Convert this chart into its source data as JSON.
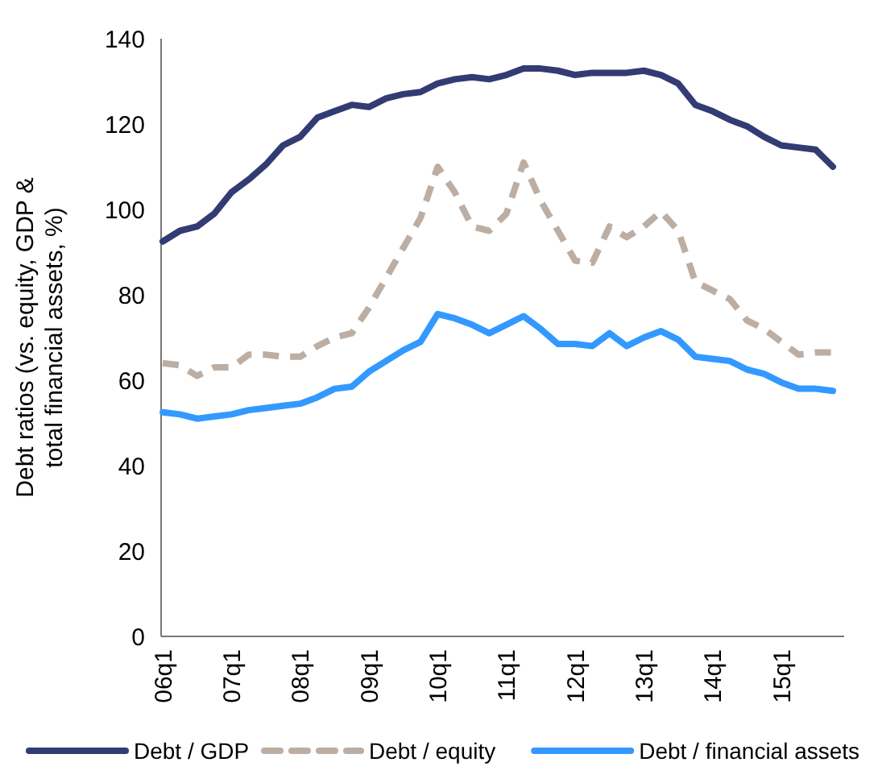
{
  "chart_data": {
    "type": "line",
    "ylabel": "Debt ratios (vs. equity, GDP & total financial assets, %)",
    "categories": [
      "06q1",
      null,
      null,
      null,
      "07q1",
      null,
      null,
      null,
      "08q1",
      null,
      null,
      null,
      "09q1",
      null,
      null,
      null,
      "10q1",
      null,
      null,
      null,
      "11q1",
      null,
      null,
      null,
      "12q1",
      null,
      null,
      null,
      "13q1",
      null,
      null,
      null,
      "14q1",
      null,
      null,
      null,
      "15q1",
      null,
      null,
      null
    ],
    "ylim": [
      0,
      140
    ],
    "yticks": [
      0,
      20,
      40,
      60,
      80,
      100,
      120,
      140
    ],
    "grid": false,
    "legend": "bottom",
    "series": [
      {
        "name": "Debt / GDP",
        "color": "#333b73",
        "line_style": "solid",
        "values": [
          92.5,
          95,
          96,
          99,
          104,
          107,
          110.5,
          115,
          117,
          121.5,
          123,
          124.5,
          124,
          126,
          127,
          127.5,
          129.5,
          130.5,
          131,
          130.5,
          131.5,
          133,
          133,
          132.5,
          131.5,
          132,
          132,
          132,
          132.5,
          131.5,
          129.5,
          124.5,
          123,
          121,
          119.5,
          117,
          115,
          114.5,
          114,
          110
        ]
      },
      {
        "name": "Debt / equity",
        "color": "#bcaea3",
        "line_style": "dashed",
        "values": [
          64,
          63.5,
          61,
          63,
          63,
          66,
          66,
          65.5,
          65.5,
          68,
          70,
          71,
          77,
          84,
          91,
          98,
          110,
          104,
          96,
          95,
          99,
          111,
          102,
          95,
          88,
          87.5,
          96,
          93.5,
          96,
          99.5,
          95,
          83,
          81,
          79,
          74,
          72,
          69,
          66,
          66.5,
          66.5
        ]
      },
      {
        "name": "Debt / financial assets",
        "color": "#3399ff",
        "line_style": "solid",
        "values": [
          52.5,
          52,
          51,
          51.5,
          52,
          53,
          53.5,
          54,
          54.5,
          56,
          58,
          58.5,
          62,
          64.5,
          67,
          69,
          75.5,
          74.5,
          73,
          71,
          73,
          75,
          72,
          68.5,
          68.5,
          68,
          71,
          68,
          70,
          71.5,
          69.5,
          65.5,
          65,
          64.5,
          62.5,
          61.5,
          59.5,
          58,
          58,
          57.5
        ]
      }
    ]
  }
}
